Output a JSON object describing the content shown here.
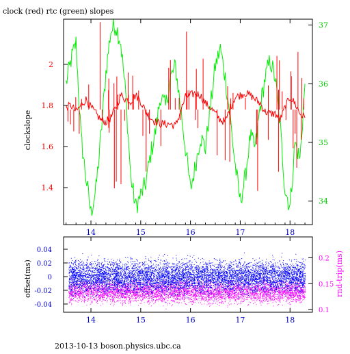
{
  "chart_data": [
    {
      "type": "line",
      "title": "clock (red) rtc (green) slopes",
      "ylabel": "clockslope",
      "xlim": [
        13.45,
        18.45
      ],
      "ylim": [
        1.22,
        2.22
      ],
      "y2lim": [
        33.6,
        37.1
      ],
      "x_ticks": [
        "14",
        "15",
        "16",
        "17",
        "18"
      ],
      "y_ticks": [
        "1.4",
        "1.6",
        "1.8",
        "2"
      ],
      "y2_ticks": [
        "34",
        "35",
        "36",
        "37"
      ],
      "series": [
        {
          "color": "#ff0000",
          "axis": "left",
          "x": [
            13.5,
            13.6,
            13.7,
            13.8,
            13.9,
            14.0,
            14.1,
            14.2,
            14.3,
            14.4,
            14.5,
            14.6,
            14.7,
            14.8,
            14.9,
            15.0,
            15.1,
            15.2,
            15.3,
            15.4,
            15.5,
            15.6,
            15.7,
            15.8,
            15.9,
            16.0,
            16.1,
            16.2,
            16.3,
            16.4,
            16.5,
            16.6,
            16.7,
            16.8,
            16.9,
            17.0,
            17.1,
            17.2,
            17.3,
            17.4,
            17.5,
            17.6,
            17.7,
            17.8,
            17.9,
            18.0,
            18.1,
            18.2,
            18.3
          ],
          "y": [
            1.79,
            1.8,
            1.77,
            1.8,
            1.83,
            1.79,
            1.76,
            1.73,
            1.72,
            1.74,
            1.79,
            1.85,
            1.83,
            1.82,
            1.85,
            1.82,
            1.77,
            1.74,
            1.72,
            1.71,
            1.71,
            1.71,
            1.7,
            1.77,
            1.84,
            1.85,
            1.86,
            1.85,
            1.81,
            1.79,
            1.76,
            1.73,
            1.72,
            1.79,
            1.84,
            1.85,
            1.86,
            1.85,
            1.83,
            1.81,
            1.77,
            1.76,
            1.76,
            1.73,
            1.79,
            1.84,
            1.81,
            1.76,
            1.74
          ]
        },
        {
          "color": "#00ee00",
          "axis": "right",
          "x": [
            13.5,
            13.6,
            13.7,
            13.8,
            13.9,
            14.0,
            14.1,
            14.2,
            14.3,
            14.4,
            14.5,
            14.6,
            14.7,
            14.8,
            14.9,
            15.0,
            15.1,
            15.2,
            15.3,
            15.4,
            15.5,
            15.6,
            15.7,
            15.8,
            15.9,
            16.0,
            16.1,
            16.2,
            16.3,
            16.4,
            16.5,
            16.6,
            16.7,
            16.8,
            16.9,
            17.0,
            17.1,
            17.2,
            17.3,
            17.4,
            17.5,
            17.6,
            17.7,
            17.8,
            17.9,
            18.0,
            18.1,
            18.2,
            18.3
          ],
          "y": [
            36.0,
            36.4,
            36.7,
            35.1,
            34.4,
            33.8,
            34.2,
            35.1,
            36.2,
            36.9,
            37.0,
            36.7,
            35.8,
            34.4,
            33.9,
            34.1,
            34.3,
            34.8,
            35.2,
            35.8,
            35.6,
            36.1,
            36.3,
            35.6,
            34.9,
            34.2,
            34.6,
            35.1,
            34.9,
            35.6,
            36.3,
            36.6,
            36.1,
            35.4,
            34.6,
            34.0,
            34.4,
            35.1,
            34.9,
            35.6,
            36.1,
            36.4,
            36.1,
            35.3,
            34.2,
            33.9,
            35.0,
            34.7,
            36.0
          ]
        }
      ]
    },
    {
      "type": "scatter",
      "ylabel": "offset(ms)",
      "y2label": "rnd-trip(ms)",
      "xlim": [
        13.45,
        18.45
      ],
      "ylim": [
        -0.052,
        0.058
      ],
      "y2lim": [
        0.095,
        0.24
      ],
      "x_ticks": [
        "14",
        "15",
        "16",
        "17",
        "18"
      ],
      "y_ticks": [
        "-0.04",
        "-0.02",
        "0",
        "0.02",
        "0.04"
      ],
      "y2_ticks": [
        "0.1",
        "0.15",
        "0.2"
      ],
      "series": [
        {
          "color": "#0000ff",
          "axis": "left",
          "y_center": 0.0,
          "y_spread": 0.02
        },
        {
          "color": "#ff00ff",
          "axis": "right",
          "y_center": 0.135,
          "y_spread": 0.018
        }
      ]
    }
  ],
  "footer": "2013-10-13 boson.physics.ubc.ca"
}
